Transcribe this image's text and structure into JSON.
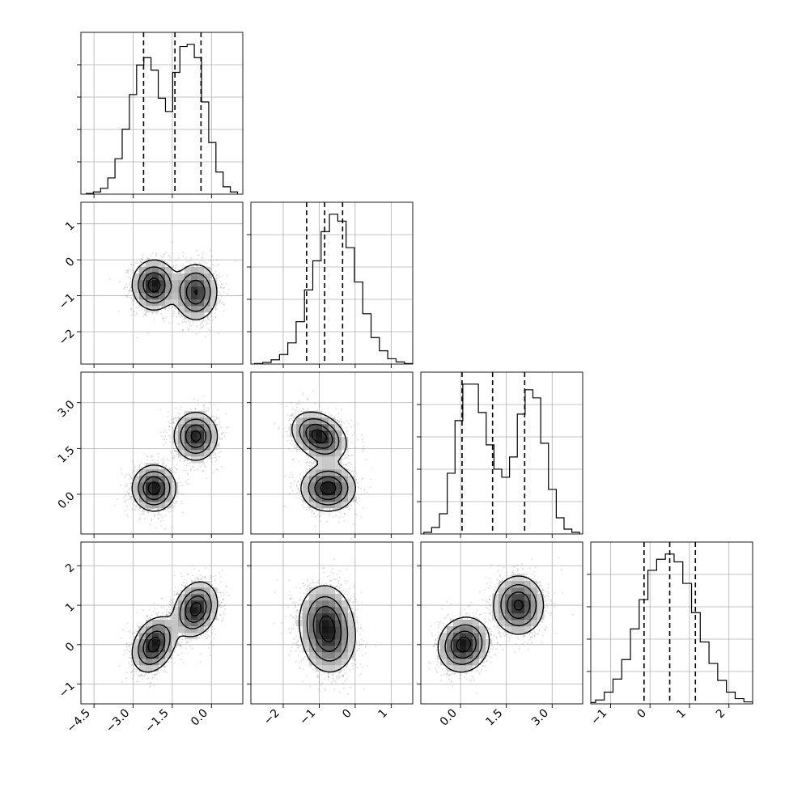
{
  "chart_data": {
    "type": "corner",
    "n_params": 4,
    "grid": true,
    "quantile_lines": "dashed",
    "axis_ranges": [
      [
        -5.0,
        1.2
      ],
      [
        -2.9,
        1.6
      ],
      [
        -1.3,
        4.0
      ],
      [
        -1.5,
        2.6
      ]
    ],
    "ticks": [
      {
        "values": [
          -4.5,
          -3.0,
          -1.5,
          0.0
        ],
        "labels": [
          "−4.5",
          "−3.0",
          "−1.5",
          "0.0"
        ]
      },
      {
        "values": [
          -2,
          -1,
          0,
          1
        ],
        "labels": [
          "−2",
          "−1",
          "0",
          "1"
        ]
      },
      {
        "values": [
          0.0,
          1.5,
          3.0
        ],
        "labels": [
          "0.0",
          "1.5",
          "3.0"
        ]
      },
      {
        "values": [
          -1,
          0,
          1,
          2
        ],
        "labels": [
          "−1",
          "0",
          "1",
          "2"
        ]
      }
    ],
    "quantiles": [
      [
        -2.6,
        -1.4,
        -0.4
      ],
      [
        -1.35,
        -0.85,
        -0.35
      ],
      [
        0.05,
        1.05,
        2.1
      ],
      [
        -0.15,
        0.5,
        1.15
      ]
    ],
    "histograms": [
      {
        "bin_edges_range": [
          -4.8,
          1.0
        ],
        "counts": [
          1,
          3,
          8,
          22,
          48,
          88,
          135,
          175,
          185,
          168,
          130,
          112,
          165,
          200,
          203,
          185,
          125,
          70,
          30,
          10,
          3
        ]
      },
      {
        "bin_edges_range": [
          -2.8,
          1.6
        ],
        "counts": [
          1,
          3,
          8,
          18,
          40,
          80,
          140,
          195,
          250,
          283,
          270,
          220,
          155,
          95,
          50,
          25,
          10,
          4,
          1
        ]
      },
      {
        "bin_edges_range": [
          -1.2,
          3.9
        ],
        "counts": [
          2,
          8,
          25,
          75,
          140,
          185,
          185,
          150,
          110,
          80,
          70,
          95,
          148,
          178,
          168,
          112,
          55,
          20,
          6,
          2
        ]
      },
      {
        "bin_edges_range": [
          -1.6,
          2.6
        ],
        "counts": [
          2,
          6,
          18,
          38,
          68,
          115,
          160,
          205,
          222,
          230,
          218,
          185,
          140,
          95,
          62,
          36,
          18,
          8,
          3
        ]
      }
    ],
    "pair_panels": [
      {
        "row": 1,
        "col": 0,
        "modes": [
          {
            "mean": [
              -2.2,
              -0.7
            ],
            "sd": [
              0.42,
              0.35
            ],
            "rho": 0.0
          },
          {
            "mean": [
              -0.6,
              -0.9
            ],
            "sd": [
              0.42,
              0.4
            ],
            "rho": 0.0
          }
        ]
      },
      {
        "row": 2,
        "col": 0,
        "modes": [
          {
            "mean": [
              -2.2,
              0.2
            ],
            "sd": [
              0.42,
              0.38
            ],
            "rho": 0.0
          },
          {
            "mean": [
              -0.6,
              1.9
            ],
            "sd": [
              0.42,
              0.4
            ],
            "rho": 0.0
          }
        ]
      },
      {
        "row": 2,
        "col": 1,
        "modes": [
          {
            "mean": [
              -1.0,
              1.9
            ],
            "sd": [
              0.38,
              0.4
            ],
            "rho": -0.3
          },
          {
            "mean": [
              -0.75,
              0.2
            ],
            "sd": [
              0.38,
              0.38
            ],
            "rho": 0.0
          }
        ]
      },
      {
        "row": 3,
        "col": 0,
        "modes": [
          {
            "mean": [
              -2.2,
              0.0
            ],
            "sd": [
              0.42,
              0.35
            ],
            "rho": 0.3
          },
          {
            "mean": [
              -0.6,
              0.9
            ],
            "sd": [
              0.42,
              0.35
            ],
            "rho": 0.2
          }
        ]
      },
      {
        "row": 3,
        "col": 1,
        "modes": [
          {
            "mean": [
              -0.85,
              0.7
            ],
            "sd": [
              0.38,
              0.45
            ],
            "rho": 0.0
          },
          {
            "mean": [
              -0.7,
              0.1
            ],
            "sd": [
              0.38,
              0.45
            ],
            "rho": 0.0
          }
        ]
      },
      {
        "row": 3,
        "col": 2,
        "modes": [
          {
            "mean": [
              0.1,
              0.0
            ],
            "sd": [
              0.42,
              0.35
            ],
            "rho": 0.1
          },
          {
            "mean": [
              1.9,
              1.0
            ],
            "sd": [
              0.42,
              0.38
            ],
            "rho": 0.0
          }
        ]
      }
    ],
    "contour_levels": 4,
    "title": "",
    "xlabels": [
      "",
      "",
      "",
      ""
    ],
    "ylabels": [
      "",
      "",
      "",
      ""
    ],
    "colors": {
      "scatter": "#555555",
      "line": "#000000",
      "grid": "#b0b0b0",
      "frame": "#000000"
    }
  }
}
